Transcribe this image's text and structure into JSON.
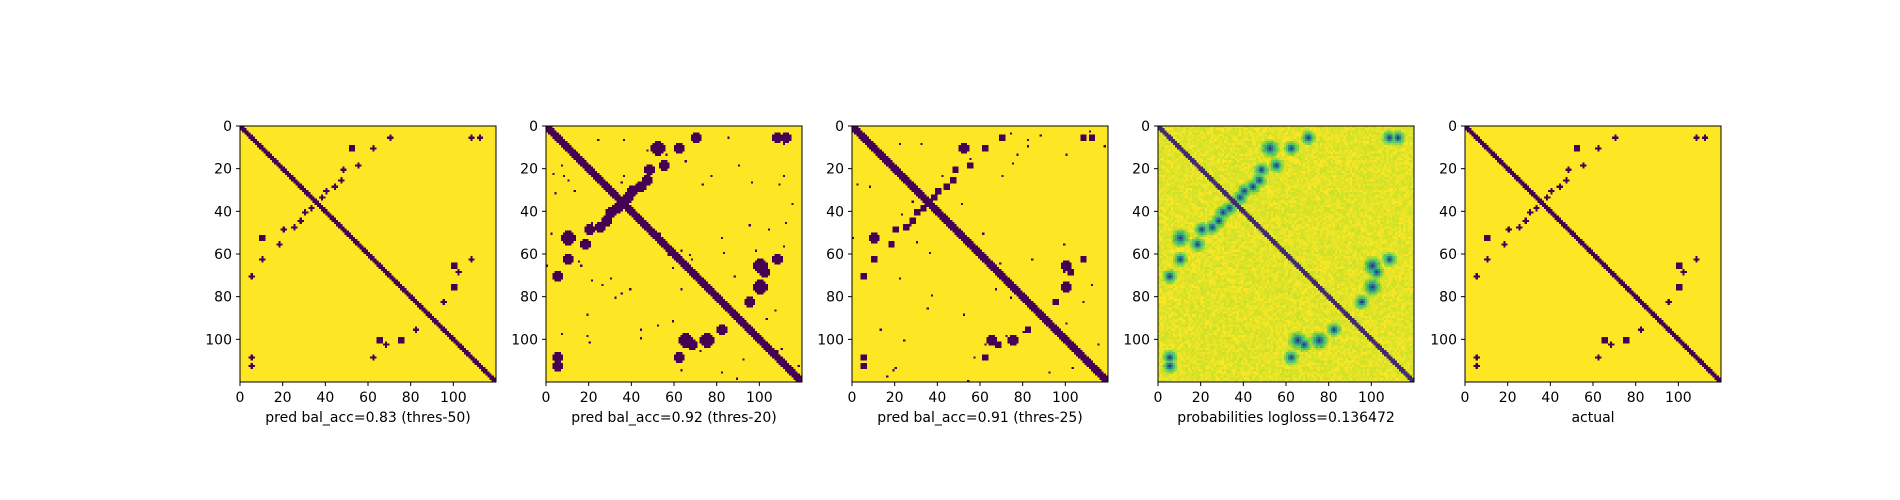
{
  "colors": {
    "low": "#440154",
    "high": "#fde725",
    "mid_palette": [
      "#440154",
      "#3b528b",
      "#21918c",
      "#5ec962",
      "#b5de2b",
      "#fde725"
    ]
  },
  "chart_data": [
    {
      "type": "heatmap",
      "xlabel": "pred bal_acc=0.83 (thres-50)",
      "size": 120,
      "xticks": [
        0,
        20,
        40,
        60,
        80,
        100
      ],
      "yticks": [
        0,
        20,
        40,
        60,
        80,
        100
      ],
      "colormap": "viridis",
      "values": "binary",
      "diagonal_width": 3,
      "off_diagonal_density": "low"
    },
    {
      "type": "heatmap",
      "xlabel": "pred bal_acc=0.92 (thres-20)",
      "size": 120,
      "xticks": [
        0,
        20,
        40,
        60,
        80,
        100
      ],
      "yticks": [
        0,
        20,
        40,
        60,
        80,
        100
      ],
      "colormap": "viridis",
      "values": "binary",
      "diagonal_width": 4,
      "off_diagonal_density": "high"
    },
    {
      "type": "heatmap",
      "xlabel": "pred bal_acc=0.91 (thres-25)",
      "size": 120,
      "xticks": [
        0,
        20,
        40,
        60,
        80,
        100
      ],
      "yticks": [
        0,
        20,
        40,
        60,
        80,
        100
      ],
      "colormap": "viridis",
      "values": "binary",
      "diagonal_width": 4,
      "off_diagonal_density": "medium"
    },
    {
      "type": "heatmap",
      "xlabel": "probabilities logloss=0.136472",
      "size": 120,
      "xticks": [
        0,
        20,
        40,
        60,
        80,
        100
      ],
      "yticks": [
        0,
        20,
        40,
        60,
        80,
        100
      ],
      "colormap": "viridis",
      "values": "continuous",
      "diagonal_width": 3,
      "off_diagonal_density": "medium"
    },
    {
      "type": "heatmap",
      "xlabel": "actual",
      "size": 120,
      "xticks": [
        0,
        20,
        40,
        60,
        80,
        100
      ],
      "yticks": [
        0,
        20,
        40,
        60,
        80,
        100
      ],
      "colormap": "viridis",
      "values": "binary",
      "diagonal_width": 3,
      "off_diagonal_density": "low"
    }
  ]
}
